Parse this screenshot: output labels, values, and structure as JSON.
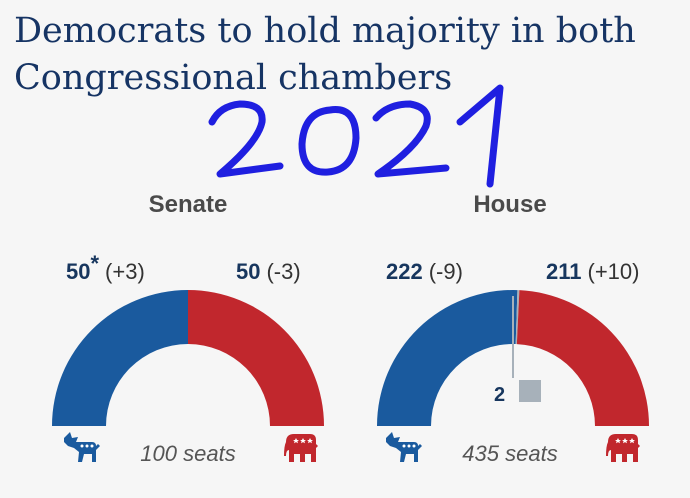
{
  "title_lines": [
    "Democrats to hold majority in both",
    "Congressional chambers"
  ],
  "annotation_text": "2021",
  "colors": {
    "democrat": "#1a5a9e",
    "republican": "#c1272d",
    "vacant": "#a7b1ba",
    "title": "#163464",
    "annotation": "#1f1fe0"
  },
  "chart_data": [
    {
      "type": "pie",
      "title": "Senate",
      "total_label": "100 seats",
      "series": [
        {
          "name": "Democrats",
          "value": 50,
          "label": "50",
          "marker": "*",
          "change": "(+3)",
          "icon": "donkey-icon"
        },
        {
          "name": "Republicans",
          "value": 50,
          "label": "50",
          "change": "(-3)",
          "icon": "elephant-icon"
        }
      ]
    },
    {
      "type": "pie",
      "title": "House",
      "total_label": "435 seats",
      "series": [
        {
          "name": "Democrats",
          "value": 222,
          "label": "222",
          "change": "(-9)",
          "icon": "donkey-icon"
        },
        {
          "name": "Vacant",
          "value": 2,
          "label": "2"
        },
        {
          "name": "Republicans",
          "value": 211,
          "label": "211",
          "change": "(+10)",
          "icon": "elephant-icon"
        }
      ]
    }
  ]
}
